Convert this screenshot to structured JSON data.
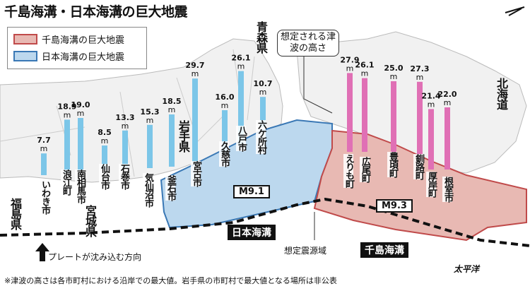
{
  "title": "千島海溝・日本海溝の巨大地震",
  "legend": [
    {
      "label": "千島海溝の巨大地震",
      "fill": "#e8b9b3",
      "stroke": "#c04a4a"
    },
    {
      "label": "日本海溝の巨大地震",
      "fill": "#bcd8ee",
      "stroke": "#3a78b5"
    }
  ],
  "callout": "想定される津波の高さ",
  "unit": "m",
  "bars_japan": [
    {
      "city": "いわき市",
      "value": "7.7"
    },
    {
      "city": "浪江町",
      "value": "18.9"
    },
    {
      "city": "南相馬市",
      "value": "19.0"
    },
    {
      "city": "仙台市",
      "value": "8.5"
    },
    {
      "city": "石巻市",
      "value": "13.3"
    },
    {
      "city": "気仙沼市",
      "value": "15.3"
    },
    {
      "city": "釜石市",
      "value": "18.5"
    },
    {
      "city": "宮古市",
      "value": "29.7"
    },
    {
      "city": "久慈市",
      "value": "16.0"
    },
    {
      "city": "八戸市",
      "value": "26.1"
    },
    {
      "city": "六ケ所村",
      "value": "10.7"
    }
  ],
  "bars_chishima": [
    {
      "city": "えりも町",
      "value": "27.9"
    },
    {
      "city": "広尾町",
      "value": "26.1"
    },
    {
      "city": "豊頃町",
      "value": "25.0"
    },
    {
      "city": "釧路町",
      "value": "27.3"
    },
    {
      "city": "厚岸町",
      "value": "21.4"
    },
    {
      "city": "根室市",
      "value": "22.0"
    }
  ],
  "prefectures": {
    "fukushima": "福島県",
    "miyagi": "宮城県",
    "iwate": "岩手県",
    "aomori": "青森県",
    "hokkaido": "北海道"
  },
  "magnitudes": {
    "japan": "M9.1",
    "chishima": "M9.3"
  },
  "trenches": {
    "japan": "日本海溝",
    "chishima": "千島海溝"
  },
  "source_area": "想定震源域",
  "plate_direction": "プレートが沈み込む方向",
  "pacific": "太平洋",
  "footnote": "※津波の高さは各市町村における沿岸での最大値。岩手県の市町村で最大値となる場所は非公表",
  "colors": {
    "blue_bar": "#7cc6e8",
    "pink_bar": "#e070b5",
    "land": "#f4f4f4",
    "sea": "#ffffff"
  }
}
